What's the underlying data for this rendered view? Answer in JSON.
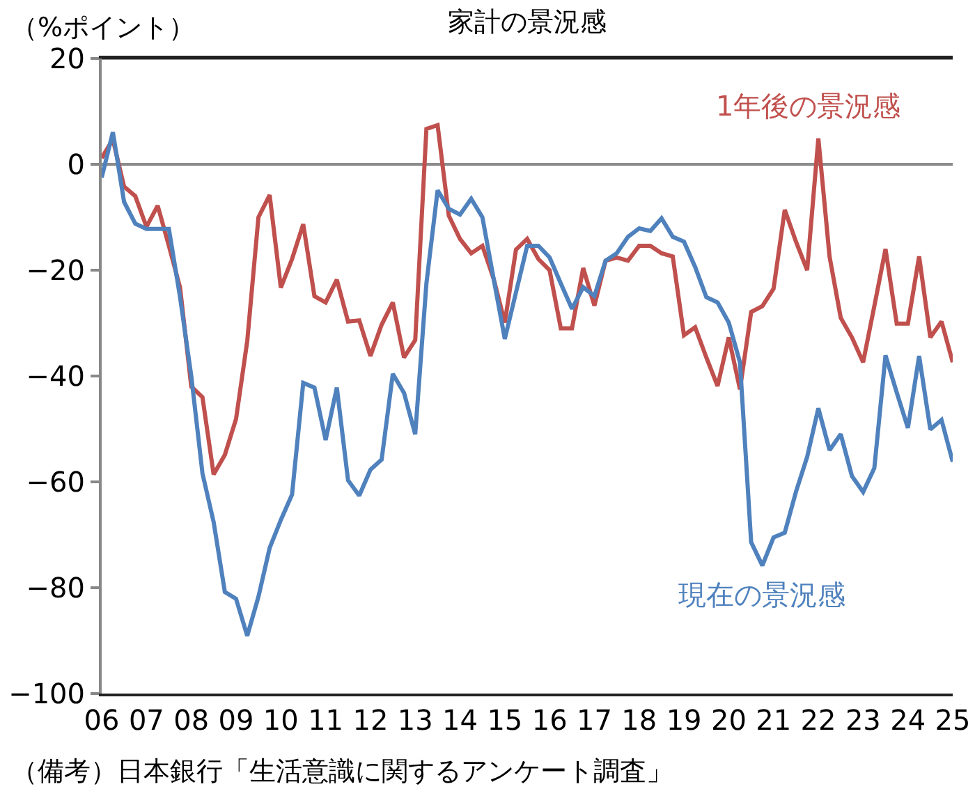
{
  "chart_data": {
    "type": "line",
    "title": "家計の景況感",
    "ylabel": "（%ポイント）",
    "annotations": [
      "（備考）日本銀行「生活意識に関するアンケート調査」"
    ],
    "x": [
      2006,
      2006.25,
      2006.5,
      2006.75,
      2007,
      2007.25,
      2007.5,
      2007.75,
      2008,
      2008.25,
      2008.5,
      2008.75,
      2009,
      2009.25,
      2009.5,
      2009.75,
      2010,
      2010.25,
      2010.5,
      2010.75,
      2011,
      2011.25,
      2011.5,
      2011.75,
      2012,
      2012.25,
      2012.5,
      2012.75,
      2013,
      2013.25,
      2013.5,
      2013.75,
      2014,
      2014.25,
      2014.5,
      2014.75,
      2015,
      2015.25,
      2015.5,
      2015.75,
      2016,
      2016.25,
      2016.5,
      2016.75,
      2017,
      2017.25,
      2017.5,
      2017.75,
      2018,
      2018.25,
      2018.5,
      2018.75,
      2019,
      2019.25,
      2019.5,
      2019.75,
      2020,
      2020.25,
      2020.5,
      2020.75,
      2021,
      2021.25,
      2021.5,
      2021.75,
      2022,
      2022.25,
      2022.5,
      2022.75,
      2023,
      2023.25,
      2023.5,
      2023.75,
      2024,
      2024.25,
      2024.5,
      2024.75,
      2025
    ],
    "series": [
      {
        "name": "1年後の景況感",
        "color": "#c0504d",
        "values": [
          1.2,
          4.7,
          -4.2,
          -6,
          -11.8,
          -7.8,
          -15.4,
          -23.3,
          -42,
          -44,
          -58.6,
          -54.9,
          -48.1,
          -33.4,
          -10,
          -5.8,
          -23.3,
          -17.9,
          -11.3,
          -24.9,
          -26.1,
          -21.8,
          -29.7,
          -29.5,
          -36.2,
          -30.3,
          -26.1,
          -36.5,
          -33.2,
          6.7,
          7.4,
          -9.7,
          -14.1,
          -16.8,
          -15.4,
          -21.6,
          -29.9,
          -16.1,
          -14.1,
          -17.9,
          -20,
          -31,
          -31,
          -19.6,
          -26.7,
          -18.2,
          -17.6,
          -18.2,
          -15.4,
          -15.4,
          -16.8,
          -17.4,
          -32.3,
          -30.8,
          -36.5,
          -41.9,
          -32.7,
          -42.5,
          -27.9,
          -26.8,
          -23.5,
          -8.6,
          -14.6,
          -20,
          4.9,
          -17.4,
          -29,
          -32.7,
          -37.4,
          -26.8,
          -16,
          -30.1,
          -30.1,
          -17.4,
          -32.7,
          -29.7,
          -37.4
        ]
      },
      {
        "name": "現在の景況感",
        "color": "#4f81bd",
        "values": [
          -2.5,
          6.1,
          -7.1,
          -11.2,
          -12.2,
          -12.2,
          -12.2,
          -25.1,
          -40,
          -58.4,
          -67.6,
          -80.8,
          -82.1,
          -89.1,
          -81.7,
          -72.5,
          -67.2,
          -62.4,
          -41.3,
          -42.2,
          -52.1,
          -42.2,
          -59.7,
          -62.6,
          -57.7,
          -55.8,
          -39.6,
          -43.2,
          -51,
          -22.5,
          -4.9,
          -8.4,
          -9.5,
          -6.5,
          -10,
          -21.6,
          -33,
          -24.2,
          -15.4,
          -15.4,
          -17.6,
          -22.5,
          -27.3,
          -23.2,
          -24.9,
          -18.2,
          -16.8,
          -13.7,
          -12.1,
          -12.6,
          -10.2,
          -13.7,
          -14.6,
          -19.4,
          -25.1,
          -26.1,
          -29.9,
          -37.4,
          -71.4,
          -75.8,
          -70.5,
          -69.6,
          -61.9,
          -55.3,
          -46.1,
          -54,
          -51,
          -58.9,
          -61.9,
          -57.4,
          -36.1,
          -43.1,
          -49.8,
          -36.2,
          -50.1,
          -48.3,
          -56.2
        ]
      }
    ],
    "xlim": [
      2006,
      2025
    ],
    "xticks": [
      {
        "value": 2006,
        "label": "06"
      },
      {
        "value": 2007,
        "label": "07"
      },
      {
        "value": 2008,
        "label": "08"
      },
      {
        "value": 2009,
        "label": "09"
      },
      {
        "value": 2010,
        "label": "10"
      },
      {
        "value": 2011,
        "label": "11"
      },
      {
        "value": 2012,
        "label": "12"
      },
      {
        "value": 2013,
        "label": "13"
      },
      {
        "value": 2014,
        "label": "14"
      },
      {
        "value": 2015,
        "label": "15"
      },
      {
        "value": 2016,
        "label": "16"
      },
      {
        "value": 2017,
        "label": "17"
      },
      {
        "value": 2018,
        "label": "18"
      },
      {
        "value": 2019,
        "label": "19"
      },
      {
        "value": 2020,
        "label": "20"
      },
      {
        "value": 2021,
        "label": "21"
      },
      {
        "value": 2022,
        "label": "22"
      },
      {
        "value": 2023,
        "label": "23"
      },
      {
        "value": 2024,
        "label": "24"
      },
      {
        "value": 2025,
        "label": "25"
      }
    ],
    "ylim": [
      -100,
      20
    ],
    "yticks": [
      -100,
      -80,
      -60,
      -40,
      -20,
      0,
      20
    ],
    "ref_lines": [
      {
        "axis": "y",
        "value": 0,
        "color": "#8c8c8c"
      }
    ],
    "grid": false,
    "legend": false,
    "marker": "none",
    "line_style": "solid"
  }
}
